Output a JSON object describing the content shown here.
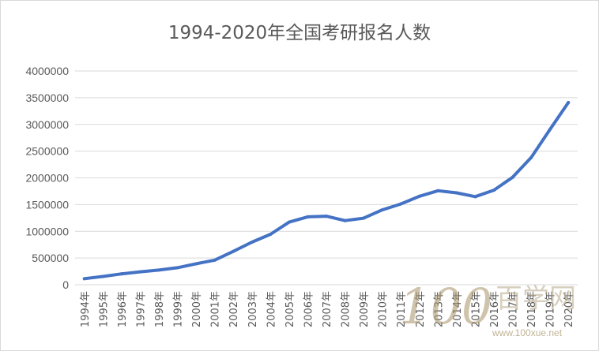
{
  "chart_data": {
    "type": "line",
    "title": "1994-2020年全国考研报名人数",
    "categories": [
      "1994年",
      "1995年",
      "1996年",
      "1997年",
      "1998年",
      "1999年",
      "2000年",
      "2001年",
      "2002年",
      "2003年",
      "2004年",
      "2005年",
      "2006年",
      "2007年",
      "2008年",
      "2009年",
      "2010年",
      "2011年",
      "2012年",
      "2013年",
      "2014年",
      "2015年",
      "2016年",
      "2017年",
      "2018年",
      "2019年",
      "2020年"
    ],
    "series": [
      {
        "values": [
          113000,
          155000,
          204000,
          242000,
          274000,
          319000,
          392000,
          460000,
          624000,
          797000,
          945000,
          1172000,
          1271000,
          1282000,
          1200000,
          1246000,
          1400000,
          1512000,
          1656000,
          1760000,
          1720000,
          1648000,
          1770000,
          2010000,
          2380000,
          2900000,
          3410000
        ]
      }
    ],
    "ylim": [
      0,
      4000000
    ],
    "yticks": [
      "0",
      "500000",
      "1000000",
      "1500000",
      "2000000",
      "2500000",
      "3000000",
      "3500000",
      "4000000"
    ],
    "xlabel": "",
    "ylabel": "",
    "grid": true,
    "legend": "none",
    "line_color": "#4472c4"
  },
  "watermark": {
    "number": "100",
    "text": "百学网",
    "url": "www.100xue.net"
  }
}
